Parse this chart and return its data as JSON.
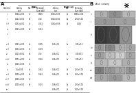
{
  "fig_bg": "#ffffff",
  "text_color": "#111111",
  "line_color": "#555555",
  "panel_a_label": "A",
  "panel_b_label": "B",
  "table_header_eai": "EAI",
  "table_header_eaili": "EAI LI",
  "img_rows": [
    {
      "ncols": 3,
      "colors": [
        "#b0b0b0",
        "#909090",
        "#b8b8b8"
      ],
      "large": false
    },
    {
      "ncols": 2,
      "colors": [
        "#989898",
        "#a0a0a0"
      ],
      "large": false
    },
    {
      "ncols": 3,
      "colors": [
        "#383838",
        "#404040",
        "#909090"
      ],
      "large": true
    },
    {
      "ncols": 4,
      "colors": [
        "#989898",
        "#888888",
        "#b0b0b0",
        "#a8a8a8"
      ],
      "large": false
    },
    {
      "ncols": 4,
      "colors": [
        "#a0a0a0",
        "#c0c0c0",
        "#d0d0d0",
        "#a8a8a8"
      ],
      "large": false
    },
    {
      "ncols": 3,
      "colors": [
        "#b8b8b8",
        "#c8c8c8",
        "#b0b0b0"
      ],
      "large": false
    },
    {
      "ncols": 4,
      "colors": [
        "#808080",
        "#989898",
        "#a8a8a8",
        "#989898"
      ],
      "large": false
    },
    {
      "ncols": 3,
      "colors": [
        "#a8a8a8",
        "#989898",
        "#b8b8b8"
      ],
      "large": false
    }
  ],
  "row_labels_b": [
    "i",
    "ii",
    "iii",
    "iv",
    "v",
    "vi",
    "vii",
    "viii"
  ]
}
